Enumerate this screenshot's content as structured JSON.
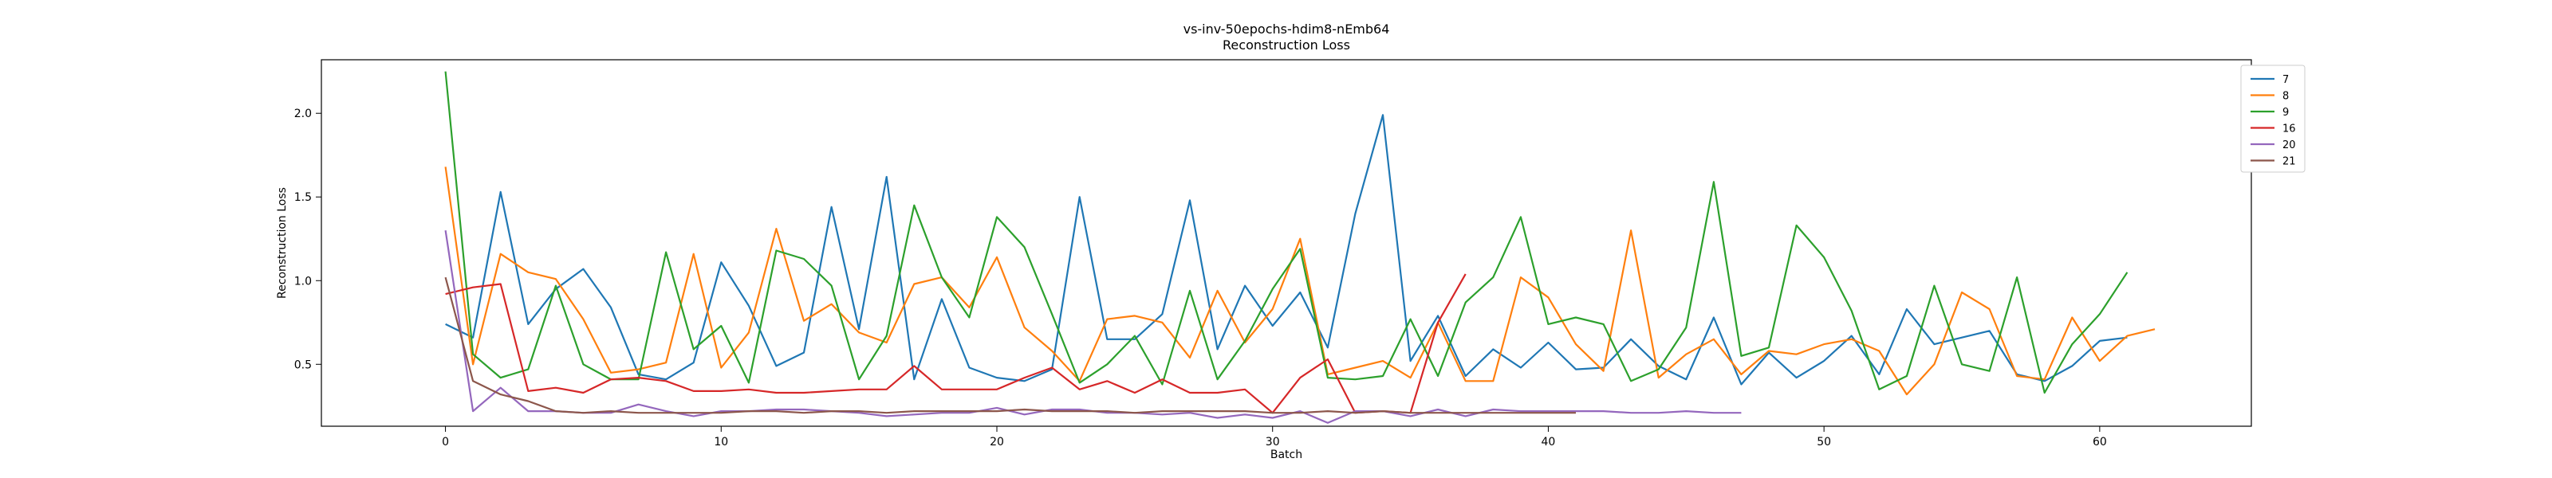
{
  "chart_data": {
    "type": "line",
    "title": "vs-inv-50epochs-hdim8-nEmb64",
    "subtitle": "Reconstruction Loss",
    "xlabel": "Batch",
    "ylabel": "Reconstruction Loss",
    "xlim": [
      -4.5,
      65.5
    ],
    "ylim": [
      0.13,
      2.32
    ],
    "xticks": [
      0,
      10,
      20,
      30,
      40,
      50,
      60
    ],
    "yticks": [
      0.5,
      1.0,
      1.5,
      2.0
    ],
    "ytick_labels": [
      "0.5",
      "1.0",
      "1.5",
      "2.0"
    ],
    "grid": false,
    "legend_position": "top-right",
    "series": [
      {
        "name": "7",
        "color": "#1f77b4",
        "values": [
          0.74,
          0.66,
          1.53,
          0.74,
          0.95,
          1.07,
          0.84,
          0.44,
          0.41,
          0.51,
          1.11,
          0.85,
          0.49,
          0.57,
          1.44,
          0.71,
          1.62,
          0.41,
          0.89,
          0.48,
          0.42,
          0.4,
          0.47,
          1.5,
          0.65,
          0.65,
          0.8,
          1.48,
          0.59,
          0.97,
          0.73,
          0.93,
          0.6,
          1.4,
          1.99,
          0.52,
          0.79,
          0.43,
          0.59,
          0.48,
          0.63,
          0.47,
          0.48,
          0.65,
          0.49,
          0.41,
          0.78,
          0.38,
          0.57,
          0.42,
          0.52,
          0.67,
          0.44,
          0.83,
          0.62,
          0.66,
          0.7,
          0.44,
          0.4,
          0.49,
          0.64,
          0.66
        ]
      },
      {
        "name": "8",
        "color": "#ff7f0e",
        "values": [
          1.68,
          0.5,
          1.16,
          1.05,
          1.01,
          0.77,
          0.45,
          0.47,
          0.51,
          1.16,
          0.48,
          0.69,
          1.31,
          0.76,
          0.86,
          0.69,
          0.63,
          0.98,
          1.02,
          0.84,
          1.14,
          0.72,
          0.58,
          0.4,
          0.77,
          0.79,
          0.75,
          0.54,
          0.94,
          0.63,
          0.83,
          1.25,
          0.44,
          0.48,
          0.52,
          0.42,
          0.75,
          0.4,
          0.4,
          1.02,
          0.9,
          0.62,
          0.46,
          1.3,
          0.42,
          0.56,
          0.65,
          0.44,
          0.58,
          0.56,
          0.62,
          0.65,
          0.58,
          0.32,
          0.5,
          0.93,
          0.83,
          0.43,
          0.41,
          0.78,
          0.52,
          0.67,
          0.71
        ]
      },
      {
        "name": "9",
        "color": "#2ca02c",
        "values": [
          2.25,
          0.56,
          0.42,
          0.47,
          0.97,
          0.5,
          0.41,
          0.41,
          1.17,
          0.59,
          0.73,
          0.39,
          1.18,
          1.13,
          0.97,
          0.41,
          0.67,
          1.45,
          1.02,
          0.78,
          1.38,
          1.2,
          0.8,
          0.39,
          0.5,
          0.67,
          0.38,
          0.94,
          0.41,
          0.64,
          0.95,
          1.19,
          0.42,
          0.41,
          0.43,
          0.77,
          0.43,
          0.87,
          1.02,
          1.38,
          0.74,
          0.78,
          0.74,
          0.4,
          0.47,
          0.72,
          1.59,
          0.55,
          0.6,
          1.33,
          1.14,
          0.82,
          0.35,
          0.43,
          0.97,
          0.5,
          0.46,
          1.02,
          0.33,
          0.62,
          0.8,
          1.05
        ]
      },
      {
        "name": "16",
        "color": "#d62728",
        "values": [
          0.92,
          0.96,
          0.98,
          0.34,
          0.36,
          0.33,
          0.41,
          0.42,
          0.4,
          0.34,
          0.34,
          0.35,
          0.33,
          0.33,
          0.34,
          0.35,
          0.35,
          0.49,
          0.35,
          0.35,
          0.35,
          0.42,
          0.48,
          0.35,
          0.4,
          0.33,
          0.41,
          0.33,
          0.33,
          0.35,
          0.21,
          0.42,
          0.53,
          0.21,
          0.22,
          0.21,
          0.75,
          1.04
        ]
      },
      {
        "name": "20",
        "color": "#9467bd",
        "values": [
          1.3,
          0.22,
          0.36,
          0.22,
          0.22,
          0.21,
          0.21,
          0.26,
          0.22,
          0.19,
          0.22,
          0.22,
          0.23,
          0.23,
          0.22,
          0.21,
          0.19,
          0.2,
          0.21,
          0.21,
          0.24,
          0.2,
          0.23,
          0.23,
          0.21,
          0.21,
          0.2,
          0.21,
          0.18,
          0.2,
          0.18,
          0.22,
          0.15,
          0.22,
          0.22,
          0.19,
          0.23,
          0.19,
          0.23,
          0.22,
          0.22,
          0.22,
          0.22,
          0.21,
          0.21,
          0.22,
          0.21,
          0.21
        ]
      },
      {
        "name": "21",
        "color": "#8c564b",
        "values": [
          1.02,
          0.4,
          0.32,
          0.28,
          0.22,
          0.21,
          0.22,
          0.21,
          0.21,
          0.21,
          0.21,
          0.22,
          0.22,
          0.21,
          0.22,
          0.22,
          0.21,
          0.22,
          0.22,
          0.22,
          0.22,
          0.23,
          0.22,
          0.22,
          0.22,
          0.21,
          0.22,
          0.22,
          0.22,
          0.22,
          0.21,
          0.21,
          0.22,
          0.21,
          0.22,
          0.21,
          0.21,
          0.21,
          0.21,
          0.21,
          0.21,
          0.21
        ]
      }
    ]
  }
}
